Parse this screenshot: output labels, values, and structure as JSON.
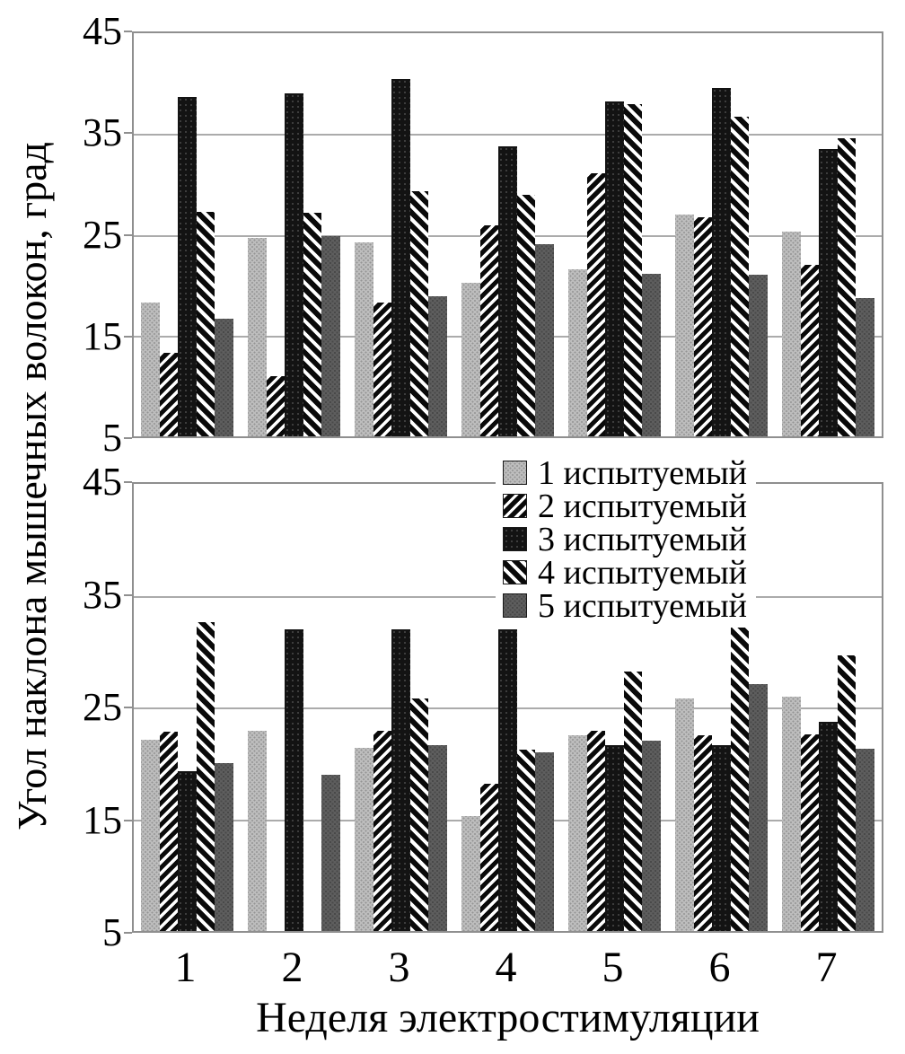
{
  "figure": {
    "y_axis_label": "Угол наклона мышечных волокон, град",
    "x_axis_label": "Неделя электростимуляции",
    "colors": {
      "grid": "#ababab",
      "plot_border": "#8f8f8f",
      "series1_fill": "#bdbdbd",
      "series3_fill": "#131313",
      "series5_fill": "#5e5e5e",
      "stripe_ink": "#0a0a0a",
      "background": "#ffffff"
    }
  },
  "legend": {
    "position": "inside-top-of-lower-chart",
    "items": [
      {
        "label": "1 испытуемый",
        "pattern": "dots-light"
      },
      {
        "label": "2 испытуемый",
        "pattern": "stripe-up"
      },
      {
        "label": "3 испытуемый",
        "pattern": "dots-black"
      },
      {
        "label": "4 испытуемый",
        "pattern": "stripe-down"
      },
      {
        "label": "5 испытуемый",
        "pattern": "dots-mid"
      }
    ]
  },
  "chart_data": [
    {
      "type": "bar",
      "title": "",
      "position": "top",
      "xlabel": "Неделя электростимуляции",
      "ylabel": "Угол наклона мышечных волокон, град",
      "x": [
        1,
        2,
        3,
        4,
        5,
        6,
        7
      ],
      "ylim": [
        5,
        45
      ],
      "yticks": [
        5,
        15,
        25,
        35,
        45
      ],
      "grid": true,
      "series": [
        {
          "name": "1 испытуемый",
          "pattern": "dots-light",
          "values": [
            18.3,
            24.7,
            24.2,
            20.2,
            21.6,
            27.0,
            25.3
          ]
        },
        {
          "name": "2 испытуемый",
          "pattern": "stripe-up",
          "values": [
            13.3,
            11.0,
            18.3,
            25.9,
            31.1,
            26.7,
            22.0
          ]
        },
        {
          "name": "3 испытуемый",
          "pattern": "dots-black",
          "values": [
            38.7,
            39.0,
            40.5,
            33.8,
            38.2,
            39.6,
            33.5
          ]
        },
        {
          "name": "4 испытуемый",
          "pattern": "stripe-down",
          "values": [
            27.3,
            27.2,
            29.3,
            29.0,
            38.0,
            36.7,
            34.6
          ]
        },
        {
          "name": "5 испытуемый",
          "pattern": "dots-mid",
          "values": [
            16.7,
            24.9,
            18.9,
            24.1,
            21.1,
            21.0,
            18.7
          ]
        }
      ]
    },
    {
      "type": "bar",
      "title": "",
      "position": "bottom",
      "xlabel": "Неделя электростимуляции",
      "ylabel": "Угол наклона мышечных волокон, град",
      "x": [
        1,
        2,
        3,
        4,
        5,
        6,
        7
      ],
      "ylim": [
        5,
        45
      ],
      "yticks": [
        5,
        15,
        25,
        35,
        45
      ],
      "grid": true,
      "series": [
        {
          "name": "1 испытуемый",
          "pattern": "dots-light",
          "values": [
            22.1,
            22.9,
            21.4,
            15.3,
            22.5,
            25.8,
            26.0
          ]
        },
        {
          "name": "2 испытуемый",
          "pattern": "stripe-up",
          "values": [
            22.8,
            null,
            22.9,
            18.2,
            22.9,
            22.5,
            22.6
          ]
        },
        {
          "name": "3 испытуемый",
          "pattern": "dots-black",
          "values": [
            19.3,
            32.0,
            32.0,
            32.0,
            21.6,
            21.6,
            23.7
          ]
        },
        {
          "name": "4 испытуемый",
          "pattern": "stripe-down",
          "values": [
            32.6,
            null,
            25.8,
            21.2,
            28.2,
            35.3,
            29.7
          ]
        },
        {
          "name": "5 испытуемый",
          "pattern": "dots-mid",
          "values": [
            20.0,
            19.0,
            21.6,
            21.0,
            22.0,
            27.1,
            21.3
          ]
        }
      ]
    }
  ]
}
